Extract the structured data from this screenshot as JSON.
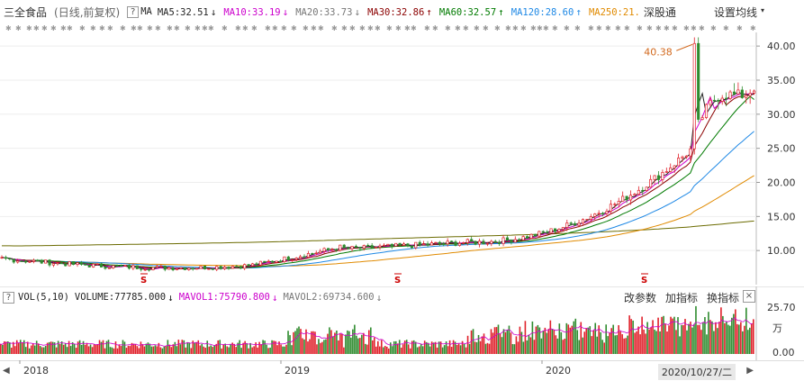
{
  "header": {
    "stock_name": "三全食品",
    "period": "(日线,前复权)",
    "help": "?",
    "ma_label": "MA",
    "ma_items": [
      {
        "label": "MA5:32.51",
        "arrow": "↓",
        "color": "#222222"
      },
      {
        "label": "MA10:33.19",
        "arrow": "↓",
        "color": "#cc00cc"
      },
      {
        "label": "MA20:33.73",
        "arrow": "↓",
        "color": "#777777"
      },
      {
        "label": "MA30:32.86",
        "arrow": "↑",
        "color": "#8b0000"
      },
      {
        "label": "MA60:32.57",
        "arrow": "↑",
        "color": "#007a00"
      },
      {
        "label": "MA120:28.60",
        "arrow": "↑",
        "color": "#1e88e5"
      },
      {
        "label": "MA250:21.",
        "arrow": "",
        "color": "#e08a00"
      }
    ],
    "shenzhen_connect": "深股通",
    "settings": "设置均线",
    "settings_caret": "▾"
  },
  "price_axis": {
    "ticks": [
      "40.00",
      "35.00",
      "30.00",
      "25.00",
      "20.00",
      "15.00",
      "10.00"
    ],
    "max_label": "40.38",
    "s_marks": [
      "S",
      "S",
      "S"
    ]
  },
  "volume": {
    "help": "?",
    "indicator": "VOL(5,10)",
    "volume_text": "VOLUME:77785.000",
    "volume_arrow": "↓",
    "mavol1": "MAVOL1:75790.800",
    "mavol1_arrow": "↓",
    "mavol2": "MAVOL2:69734.600",
    "mavol2_arrow": "↓",
    "change_params": "改参数",
    "add_indicator": "加指标",
    "swap_indicator": "换指标",
    "close": "×",
    "ticks": [
      "25.70",
      "0.00"
    ],
    "unit": "万"
  },
  "x_axis": {
    "labels": [
      "2018",
      "2019",
      "2020"
    ],
    "cursor_date": "2020/10/27/二",
    "scroll_left": "◀",
    "scroll_right": "▶"
  },
  "colors": {
    "up": "#e0202a",
    "down": "#2e8b2e",
    "ma5": "#222222",
    "ma10": "#cc00cc",
    "ma20": "#777777",
    "ma30": "#8b0000",
    "ma60": "#007a00",
    "ma120": "#1e88e5",
    "ma250": "#e08a00",
    "ma_long": "#6b6b00",
    "s_mark": "#cc0000"
  }
}
